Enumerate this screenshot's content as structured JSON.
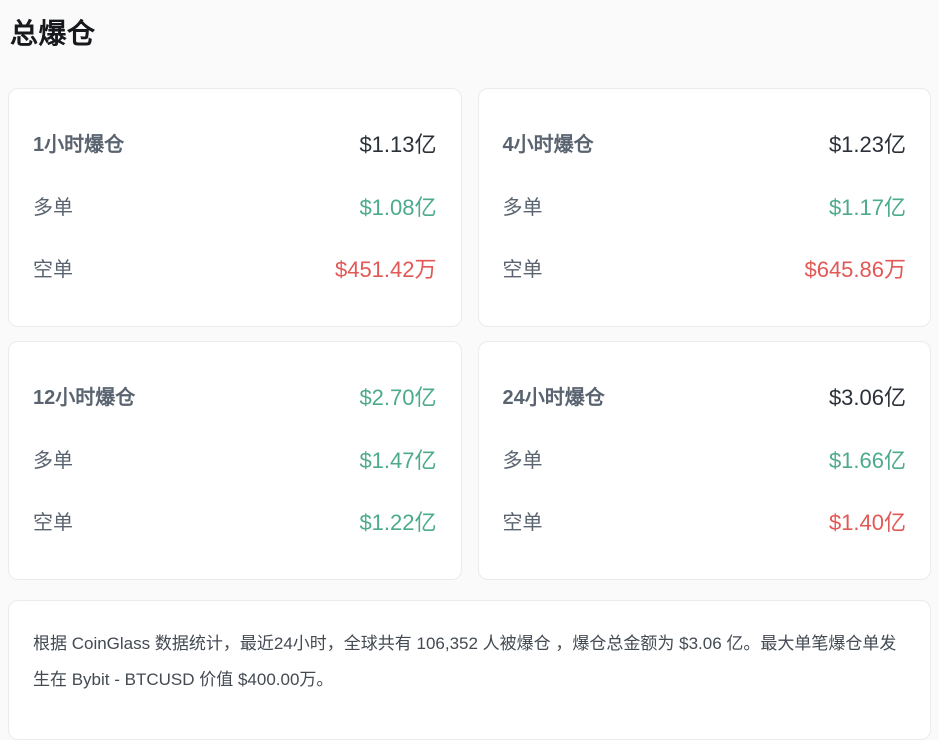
{
  "title": "总爆仓",
  "colors": {
    "green": "#4caa8d",
    "red": "#e25856",
    "dark": "#2b3139",
    "label": "#5a6470"
  },
  "cards": [
    {
      "period": "1小时爆仓",
      "total": "$1.13亿",
      "total_color": "dark",
      "long": {
        "label": "多单",
        "value": "$1.08亿",
        "color": "green"
      },
      "short": {
        "label": "空单",
        "value": "$451.42万",
        "color": "red"
      }
    },
    {
      "period": "4小时爆仓",
      "total": "$1.23亿",
      "total_color": "dark",
      "long": {
        "label": "多单",
        "value": "$1.17亿",
        "color": "green"
      },
      "short": {
        "label": "空单",
        "value": "$645.86万",
        "color": "red"
      }
    },
    {
      "period": "12小时爆仓",
      "total": "$2.70亿",
      "total_color": "green",
      "long": {
        "label": "多单",
        "value": "$1.47亿",
        "color": "green"
      },
      "short": {
        "label": "空单",
        "value": "$1.22亿",
        "color": "green"
      }
    },
    {
      "period": "24小时爆仓",
      "total": "$3.06亿",
      "total_color": "dark",
      "long": {
        "label": "多单",
        "value": "$1.66亿",
        "color": "green"
      },
      "short": {
        "label": "空单",
        "value": "$1.40亿",
        "color": "red"
      }
    }
  ],
  "summary": {
    "text": "根据 CoinGlass 数据统计，最近24小时，全球共有 106,352 人被爆仓 ，爆仓总金额为 $3.06 亿。最大单笔爆仓单发生在 Bybit - BTCUSD 价值 $400.00万。"
  }
}
